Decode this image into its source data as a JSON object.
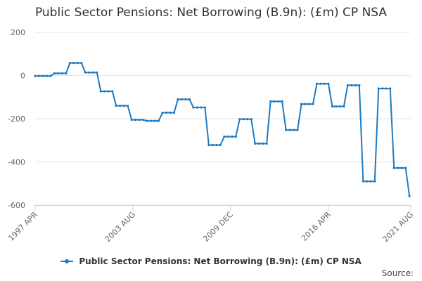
{
  "title": "Public Sector Pensions: Net Borrowing (B.9n): (£m) CP NSA",
  "source_label": "Source:",
  "colors": {
    "series": "#1f7ac1",
    "grid": "#e6e6e6",
    "axis": "#ccd6eb",
    "text": "#666666"
  },
  "chart_data": {
    "type": "line",
    "title": "Public Sector Pensions: Net Borrowing (B.9n): (£m) CP NSA",
    "xlabel": "",
    "ylabel": "",
    "x_start": "1997 APR",
    "x_end": "2021 AUG",
    "x_ticks": [
      "1997 APR",
      "2003 AUG",
      "2009 DEC",
      "2016 APR",
      "2021 AUG"
    ],
    "y_ticks": [
      200,
      0,
      -200,
      -400,
      -600
    ],
    "ylim": [
      -600,
      200
    ],
    "grid": true,
    "legend_position": "bottom",
    "series": [
      {
        "name": "Public Sector Pensions: Net Borrowing (B.9n): (£m) CP NSA",
        "segments": [
          {
            "from": "1997 Q2",
            "to": "1998 Q2",
            "value": -2
          },
          {
            "from": "1998 Q3",
            "to": "1999 Q2",
            "value": 10
          },
          {
            "from": "1999 Q3",
            "to": "2000 Q2",
            "value": 58
          },
          {
            "from": "2000 Q3",
            "to": "2001 Q2",
            "value": 14
          },
          {
            "from": "2001 Q3",
            "to": "2002 Q2",
            "value": -73
          },
          {
            "from": "2002 Q3",
            "to": "2003 Q2",
            "value": -140
          },
          {
            "from": "2003 Q3",
            "to": "2004 Q2",
            "value": -205
          },
          {
            "from": "2004 Q3",
            "to": "2005 Q2",
            "value": -210
          },
          {
            "from": "2005 Q3",
            "to": "2006 Q2",
            "value": -172
          },
          {
            "from": "2006 Q3",
            "to": "2007 Q2",
            "value": -110
          },
          {
            "from": "2007 Q3",
            "to": "2008 Q2",
            "value": -148
          },
          {
            "from": "2008 Q3",
            "to": "2009 Q2",
            "value": -322
          },
          {
            "from": "2009 Q3",
            "to": "2010 Q2",
            "value": -283
          },
          {
            "from": "2010 Q3",
            "to": "2011 Q2",
            "value": -202
          },
          {
            "from": "2011 Q3",
            "to": "2012 Q2",
            "value": -315
          },
          {
            "from": "2012 Q3",
            "to": "2013 Q2",
            "value": -120
          },
          {
            "from": "2013 Q3",
            "to": "2014 Q2",
            "value": -252
          },
          {
            "from": "2014 Q3",
            "to": "2015 Q2",
            "value": -132
          },
          {
            "from": "2015 Q3",
            "to": "2016 Q2",
            "value": -38
          },
          {
            "from": "2016 Q3",
            "to": "2017 Q2",
            "value": -143
          },
          {
            "from": "2017 Q3",
            "to": "2018 Q2",
            "value": -45
          },
          {
            "from": "2018 Q3",
            "to": "2019 Q2",
            "value": -490
          },
          {
            "from": "2019 Q3",
            "to": "2020 Q2",
            "value": -60
          },
          {
            "from": "2020 Q3",
            "to": "2021 Q2",
            "value": -428
          },
          {
            "from": "2021 Q3",
            "to": "2021 Q3",
            "value": -558
          }
        ]
      }
    ]
  }
}
